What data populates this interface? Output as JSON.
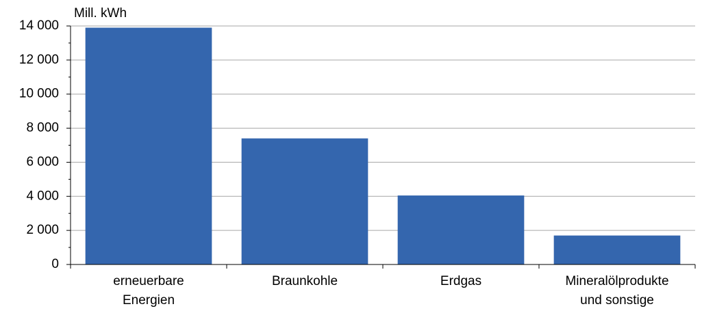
{
  "chart_data": {
    "type": "bar",
    "y_axis_label": "Mill. kWh",
    "categories": [
      "erneuerbare\nEnergien",
      "Braunkohle",
      "Erdgas",
      "Mineralölprodukte\nund sonstige"
    ],
    "values": [
      13900,
      7400,
      4050,
      1700
    ],
    "color": "#3466ae",
    "ylim": [
      0,
      14000
    ],
    "yticks": [
      0,
      {
        "value": 2000,
        "label": "2 000"
      },
      {
        "value": 4000,
        "label": "4 000"
      },
      {
        "value": 6000,
        "label": "6 000"
      },
      {
        "value": 8000,
        "label": "8 000"
      },
      {
        "value": 10000,
        "label": "10 000"
      },
      {
        "value": 12000,
        "label": "12 000"
      },
      {
        "value": 14000,
        "label": "14 000"
      }
    ],
    "grid": true
  }
}
